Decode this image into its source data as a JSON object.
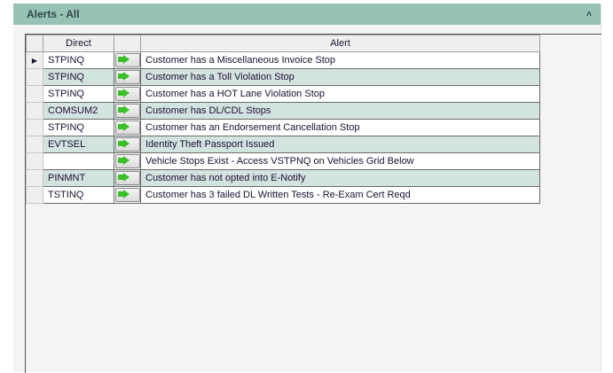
{
  "panel": {
    "title": "Alerts - All",
    "collapse_icon": "double-chevron-up-icon"
  },
  "grid": {
    "columns": [
      "Direct",
      "",
      "Alert"
    ],
    "rows": [
      {
        "direct": "STPINQ",
        "alert": "Customer has a Miscellaneous Invoice Stop",
        "selected": true
      },
      {
        "direct": "STPINQ",
        "alert": "Customer has a Toll Violation Stop"
      },
      {
        "direct": "STPINQ",
        "alert": "Customer has a HOT Lane Violation Stop"
      },
      {
        "direct": "COMSUM2",
        "alert": "Customer has DL/CDL Stops"
      },
      {
        "direct": "STPINQ",
        "alert": "Customer has an Endorsement Cancellation Stop"
      },
      {
        "direct": "EVTSEL",
        "alert": "Identity Theft Passport Issued"
      },
      {
        "direct": "",
        "alert": "Vehicle Stops Exist - Access VSTPNQ on Vehicles Grid Below"
      },
      {
        "direct": "PINMNT",
        "alert": "Customer has not opted into E-Notify"
      },
      {
        "direct": "TSTINQ",
        "alert": "Customer has 3 failed DL Written Tests - Re-Exam Cert Reqd"
      }
    ]
  },
  "colors": {
    "header": "#97c3b6",
    "alt_row": "#d3e3e0",
    "go_arrow": "#3cbf2a"
  }
}
